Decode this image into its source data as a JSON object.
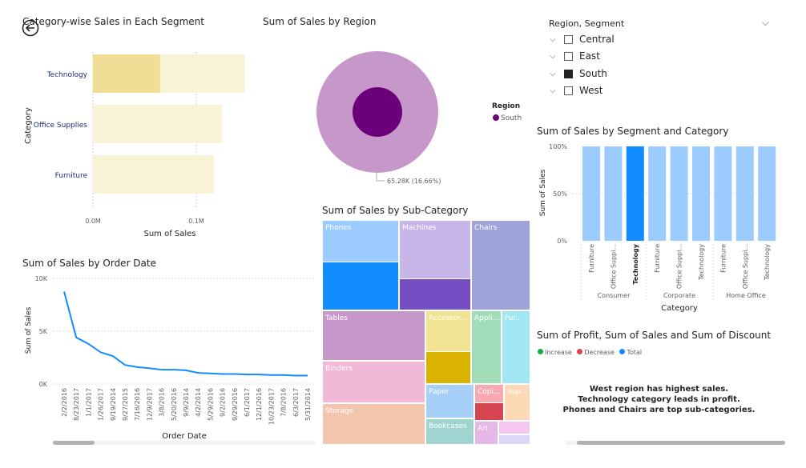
{
  "back_button_label": "Back",
  "cat_chart": {
    "title": "Category-wise Sales in Each Segment",
    "ylabel": "Category",
    "xlabel": "Sum of Sales",
    "ticks": [
      "0.0M",
      "0.1M"
    ],
    "categories": [
      "Technology",
      "Office Supplies",
      "Furniture"
    ],
    "highlight_label": "South"
  },
  "region_chart": {
    "title": "Sum of Sales by Region",
    "legend_title": "Region",
    "legend_item": "South",
    "data_label": "65.28K (16.66%)"
  },
  "slicer": {
    "title": "Region, Segment",
    "items": [
      "Central",
      "East",
      "South",
      "West"
    ]
  },
  "seg_chart": {
    "title": "Sum of Sales by Segment and Category",
    "ylabel": "Sum of Sales",
    "xlabel": "Category",
    "yticks": [
      "100%",
      "50%",
      "0%"
    ],
    "bar_labels": [
      "Furniture",
      "Office Suppl...",
      "Technology",
      "Furniture",
      "Office Suppl...",
      "Technology",
      "Furniture",
      "Office Suppl...",
      "Technology"
    ],
    "groups": [
      "Consumer",
      "Corporate",
      "Home Office"
    ]
  },
  "date_chart": {
    "title": "Sum of Sales by Order Date",
    "ylabel": "Sum of Sales",
    "xlabel": "Order Date",
    "yticks": [
      "10K",
      "5K",
      "0K"
    ],
    "dates": [
      "2/2/2016",
      "8/23/2017",
      "1/1/2017",
      "1/26/2017",
      "9/19/2014",
      "9/27/2015",
      "7/16/2016",
      "12/9/2017",
      "3/8/2016",
      "5/20/2016",
      "9/9/2014",
      "4/2/2014",
      "5/29/2016",
      "9/2/2016",
      "9/29/2016",
      "6/1/2017",
      "12/1/2016",
      "10/23/2017",
      "7/8/2016",
      "6/3/2017",
      "5/31/2014"
    ]
  },
  "treemap": {
    "title": "Sum of Sales by Sub-Category",
    "labels": {
      "phones": "Phones",
      "machines": "Machines",
      "chairs": "Chairs",
      "tables": "Tables",
      "accessories": "Accessor...",
      "appliances": "Appli...",
      "furnishings": "Fur...",
      "binders": "Binders",
      "storage": "Storage",
      "paper": "Paper",
      "copiers": "Copi...",
      "supplies": "Sup...",
      "bookcases": "Bookcases",
      "art": "Art"
    }
  },
  "waterfall": {
    "title": "Sum of Profit, Sum of Sales and Sum of Discount",
    "legend": [
      "Increase",
      "Decrease",
      "Total"
    ]
  },
  "notes": [
    "West region has highest sales.",
    "Technology category leads in profit.",
    "Phones and Chairs are top sub-categories."
  ],
  "chart_data": [
    {
      "type": "bar",
      "title": "Category-wise Sales in Each Segment",
      "categories": [
        "Technology",
        "Office Supplies",
        "Furniture"
      ],
      "series": [
        {
          "name": "South",
          "values": [
            0.065,
            0,
            0
          ]
        },
        {
          "name": "",
          "values": [
            0.147,
            0.125,
            0.117
          ]
        }
      ],
      "xlim": [
        0,
        0.15
      ],
      "xlabel": "Sum of Sales",
      "ylabel": "Category"
    },
    {
      "type": "pie",
      "title": "Sum of Sales by Region",
      "labels": [
        "South"
      ],
      "values": [
        65.28
      ],
      "percent": [
        16.66
      ]
    },
    {
      "type": "line",
      "title": "Sum of Sales by Order Date",
      "x": [
        "2/2/2016",
        "8/23/2017",
        "1/1/2017",
        "1/26/2017",
        "9/19/2014",
        "9/27/2015",
        "7/16/2016",
        "12/9/2017",
        "3/8/2016",
        "5/20/2016",
        "9/9/2014",
        "4/2/2014",
        "5/29/2016",
        "9/2/2016",
        "9/29/2016",
        "6/1/2017",
        "12/1/2016",
        "10/23/2017",
        "7/8/2016",
        "6/3/2017",
        "5/31/2014"
      ],
      "y": [
        8750,
        4400,
        3800,
        3000,
        2650,
        1800,
        1600,
        1500,
        1350,
        1350,
        1300,
        1050,
        1000,
        950,
        950,
        900,
        900,
        850,
        850,
        800,
        800
      ],
      "ylim": [
        0,
        10000
      ],
      "xlabel": "Order Date",
      "ylabel": "Sum of Sales"
    },
    {
      "type": "bar",
      "title": "Sum of Sales by Segment and Category",
      "categories": [
        "Furniture",
        "Office Suppl...",
        "Technology",
        "Furniture",
        "Office Suppl...",
        "Technology",
        "Furniture",
        "Office Suppl...",
        "Technology"
      ],
      "groups": [
        "Consumer",
        "Corporate",
        "Home Office"
      ],
      "values": [
        100,
        100,
        100,
        100,
        100,
        100,
        100,
        100,
        100
      ],
      "ylim": [
        0,
        100
      ],
      "xlabel": "Category",
      "ylabel": "Sum of Sales"
    }
  ],
  "colors": {
    "cat_highlight": "#efdf96",
    "cat_base": "#f8f2d6",
    "pie_outer": "#c598c9",
    "pie_inner": "#6b007b",
    "line": "#118dff",
    "seg_light": "#9ccbff",
    "seg_dark": "#118dff"
  }
}
